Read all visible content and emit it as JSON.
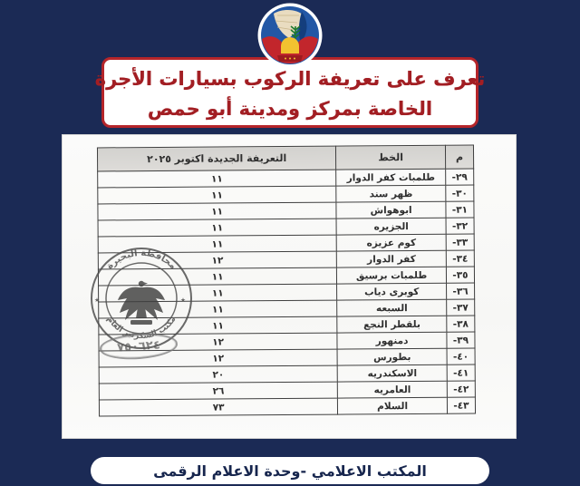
{
  "colors": {
    "background": "#1b2a55",
    "banner_text": "#a21e23",
    "banner_border": "#b5252a",
    "footer_text": "#17264e",
    "table_ink": "#2f2f2f",
    "stamp_ink": "#4a4a4a",
    "logo_blue": "#2257a5",
    "logo_red": "#c2262c",
    "logo_yellow": "#f2c230",
    "logo_green": "#1c7a2e"
  },
  "header_banner": {
    "line1": "تعرف على تعريفة الركوب بسيارات الأجرة",
    "line2": "الخاصة بمركز ومدينة أبو حمص"
  },
  "table": {
    "headers": {
      "index": "م",
      "route": "الخط",
      "fare": "التعريفة الجديدة اكتوبر ٢٠٢٥"
    },
    "rows": [
      {
        "index": "٢٩-",
        "route": "طلمبات كفر الدوار",
        "fare": "١١"
      },
      {
        "index": "٣٠-",
        "route": "ظهر سند",
        "fare": "١١"
      },
      {
        "index": "٣١-",
        "route": "ابوهواش",
        "fare": "١١"
      },
      {
        "index": "٣٢-",
        "route": "الجزيره",
        "fare": "١١"
      },
      {
        "index": "٣٣-",
        "route": "كوم عزيزه",
        "fare": "١١"
      },
      {
        "index": "٣٤-",
        "route": "كفر الدوار",
        "fare": "١٢"
      },
      {
        "index": "٣٥-",
        "route": "طلمبات برسيق",
        "fare": "١١"
      },
      {
        "index": "٣٦-",
        "route": "كوبرى دياب",
        "fare": "١١"
      },
      {
        "index": "٣٧-",
        "route": "السبعه",
        "fare": "١١"
      },
      {
        "index": "٣٨-",
        "route": "بلقطر النجع",
        "fare": "١١"
      },
      {
        "index": "٣٩-",
        "route": "دمنهور",
        "fare": "١٢"
      },
      {
        "index": "٤٠-",
        "route": "بطورس",
        "fare": "١٢"
      },
      {
        "index": "٤١-",
        "route": "الاسكندريه",
        "fare": "٢٠"
      },
      {
        "index": "٤٢-",
        "route": "العامريه",
        "fare": "٢٦"
      },
      {
        "index": "٤٣-",
        "route": "السلام",
        "fare": "٧٣"
      }
    ]
  },
  "stamp": {
    "top_text": "محافظة البحيرة",
    "bottom_text": "مكتب السكرتير العام",
    "ornament": "٭",
    "number": "٧٥٠٦٢٤"
  },
  "footer_banner": {
    "text": "المكتب الاعلامي -وحدة الاعلام الرقمى"
  }
}
